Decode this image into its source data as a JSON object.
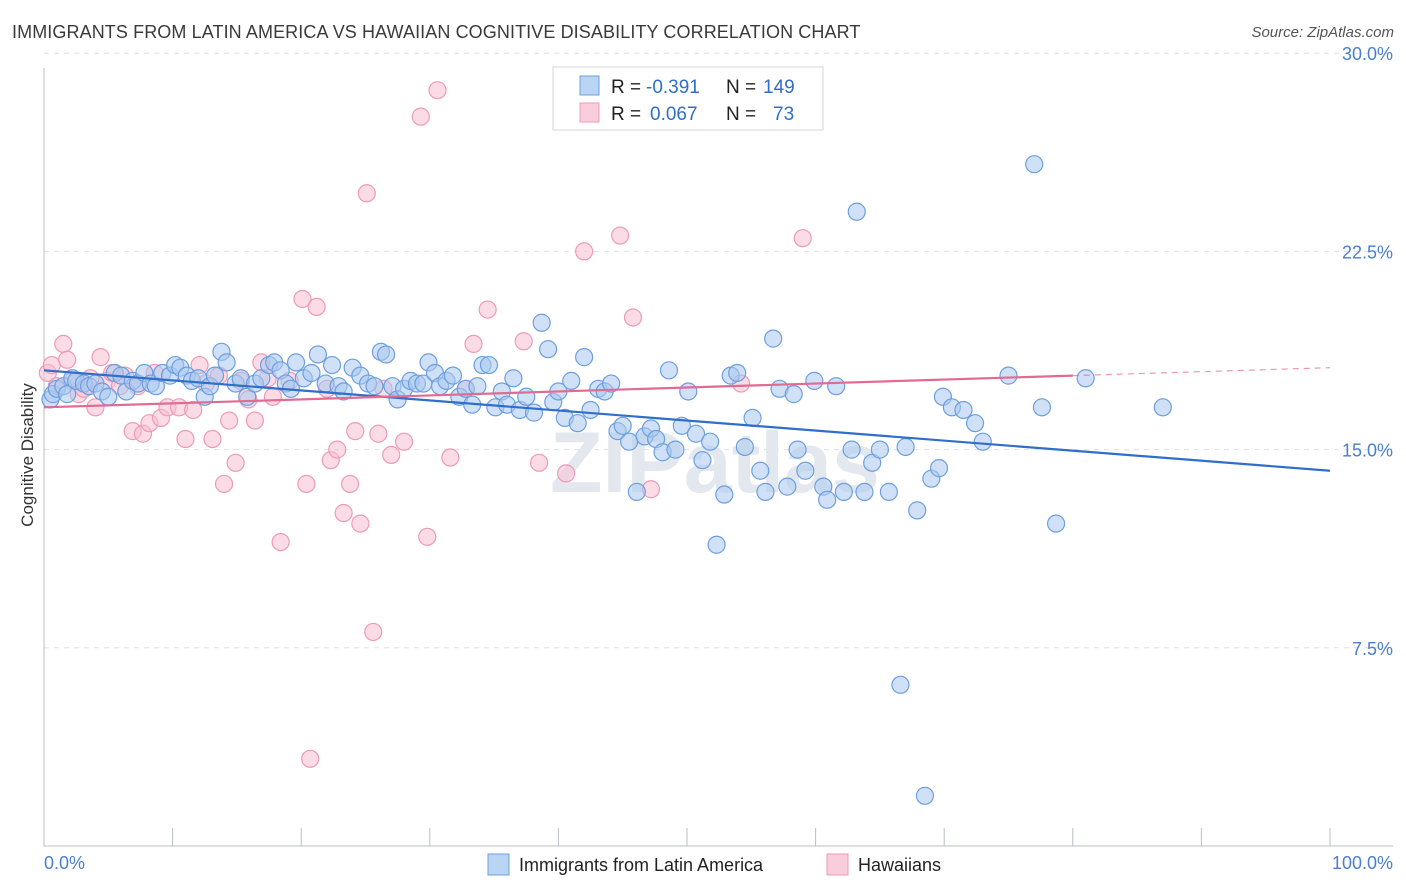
{
  "header": {
    "title": "IMMIGRANTS FROM LATIN AMERICA VS HAWAIIAN COGNITIVE DISABILITY CORRELATION CHART",
    "source": "Source: ZipAtlas.com"
  },
  "watermark": "ZIPatlas",
  "legend_box": {
    "r_label": "R =",
    "n_label": "N =",
    "rows": [
      {
        "r": "-0.391",
        "n": "149",
        "color": "#7aaee8"
      },
      {
        "r": "0.067",
        "n": "73",
        "color": "#f0a0bb"
      }
    ]
  },
  "colors": {
    "blue_fill": "#a9c9f0",
    "blue_stroke": "#6d9fe0",
    "blue_line": "#2f6ec9",
    "pink_fill": "#f7c0d2",
    "pink_stroke": "#ee9ab6",
    "pink_line": "#e06b93",
    "tick_text": "#4a7fcf",
    "grid": "#dde0e6"
  },
  "chart_data": {
    "type": "scatter",
    "title": "IMMIGRANTS FROM LATIN AMERICA VS HAWAIIAN COGNITIVE DISABILITY CORRELATION CHART",
    "xlabel": "",
    "ylabel": "Cognitive Disability",
    "xlim": [
      0,
      100
    ],
    "ylim": [
      0,
      30.5
    ],
    "x_tick_labels": [
      "0.0%",
      "100.0%"
    ],
    "y_ticks": [
      7.5,
      15.0,
      22.5,
      30.0
    ],
    "y_tick_labels": [
      "7.5%",
      "15.0%",
      "22.5%",
      "30.0%"
    ],
    "grid": "horizontal dashed",
    "legend_position": "bottom-center",
    "series": [
      {
        "name": "Immigrants from Latin America",
        "r": -0.391,
        "n": 149,
        "trend": {
          "x": [
            0,
            100
          ],
          "y": [
            18.0,
            14.2
          ]
        },
        "points": [
          [
            0.5,
            16.9
          ],
          [
            0.7,
            17.1
          ],
          [
            1.0,
            17.3
          ],
          [
            1.5,
            17.4
          ],
          [
            1.8,
            17.1
          ],
          [
            2.2,
            17.7
          ],
          [
            2.5,
            17.6
          ],
          [
            3.1,
            17.5
          ],
          [
            3.5,
            17.4
          ],
          [
            4.0,
            17.5
          ],
          [
            4.5,
            17.2
          ],
          [
            5.0,
            17.0
          ],
          [
            5.5,
            17.9
          ],
          [
            6.0,
            17.8
          ],
          [
            6.4,
            17.2
          ],
          [
            6.9,
            17.6
          ],
          [
            7.3,
            17.5
          ],
          [
            7.8,
            17.9
          ],
          [
            8.3,
            17.5
          ],
          [
            8.7,
            17.4
          ],
          [
            9.2,
            17.9
          ],
          [
            9.8,
            17.8
          ],
          [
            10.2,
            18.2
          ],
          [
            10.6,
            18.1
          ],
          [
            11.1,
            17.8
          ],
          [
            11.5,
            17.6
          ],
          [
            12.0,
            17.7
          ],
          [
            12.5,
            17.0
          ],
          [
            12.9,
            17.4
          ],
          [
            13.3,
            17.8
          ],
          [
            13.8,
            18.7
          ],
          [
            14.2,
            18.3
          ],
          [
            14.9,
            17.5
          ],
          [
            15.3,
            17.7
          ],
          [
            15.8,
            17.0
          ],
          [
            16.4,
            17.5
          ],
          [
            16.9,
            17.7
          ],
          [
            17.5,
            18.2
          ],
          [
            17.9,
            18.3
          ],
          [
            18.4,
            18.0
          ],
          [
            18.8,
            17.5
          ],
          [
            19.2,
            17.3
          ],
          [
            19.6,
            18.3
          ],
          [
            20.2,
            17.7
          ],
          [
            20.8,
            17.9
          ],
          [
            21.3,
            18.6
          ],
          [
            21.9,
            17.5
          ],
          [
            22.4,
            18.2
          ],
          [
            22.9,
            17.4
          ],
          [
            23.3,
            17.2
          ],
          [
            24.0,
            18.1
          ],
          [
            24.6,
            17.8
          ],
          [
            25.2,
            17.5
          ],
          [
            25.7,
            17.4
          ],
          [
            26.2,
            18.7
          ],
          [
            26.6,
            18.6
          ],
          [
            27.1,
            17.4
          ],
          [
            27.5,
            16.9
          ],
          [
            28.0,
            17.3
          ],
          [
            28.5,
            17.6
          ],
          [
            29.0,
            17.5
          ],
          [
            29.5,
            17.5
          ],
          [
            29.9,
            18.3
          ],
          [
            30.4,
            17.9
          ],
          [
            30.8,
            17.4
          ],
          [
            31.3,
            17.6
          ],
          [
            31.8,
            17.8
          ],
          [
            32.3,
            17.0
          ],
          [
            32.8,
            17.3
          ],
          [
            33.3,
            16.7
          ],
          [
            33.7,
            17.4
          ],
          [
            34.1,
            18.2
          ],
          [
            34.6,
            18.2
          ],
          [
            35.1,
            16.6
          ],
          [
            35.6,
            17.2
          ],
          [
            36.0,
            16.7
          ],
          [
            36.5,
            17.7
          ],
          [
            37.0,
            16.5
          ],
          [
            37.5,
            17.0
          ],
          [
            38.1,
            16.4
          ],
          [
            38.7,
            19.8
          ],
          [
            39.2,
            18.8
          ],
          [
            39.6,
            16.8
          ],
          [
            40.0,
            17.2
          ],
          [
            40.5,
            16.2
          ],
          [
            41.0,
            17.6
          ],
          [
            41.5,
            16.0
          ],
          [
            42.0,
            18.5
          ],
          [
            42.5,
            16.5
          ],
          [
            43.1,
            17.3
          ],
          [
            43.6,
            17.2
          ],
          [
            44.1,
            17.5
          ],
          [
            44.6,
            15.7
          ],
          [
            45.0,
            15.9
          ],
          [
            45.5,
            15.3
          ],
          [
            46.1,
            13.4
          ],
          [
            46.7,
            15.5
          ],
          [
            47.2,
            15.8
          ],
          [
            47.6,
            15.4
          ],
          [
            48.1,
            14.9
          ],
          [
            48.6,
            18.0
          ],
          [
            49.1,
            15.0
          ],
          [
            49.6,
            15.9
          ],
          [
            50.1,
            17.2
          ],
          [
            50.7,
            15.6
          ],
          [
            51.2,
            14.6
          ],
          [
            51.8,
            15.3
          ],
          [
            52.3,
            11.4
          ],
          [
            52.9,
            13.3
          ],
          [
            53.4,
            17.8
          ],
          [
            53.9,
            17.9
          ],
          [
            54.5,
            15.1
          ],
          [
            55.1,
            16.2
          ],
          [
            55.7,
            14.2
          ],
          [
            56.1,
            13.4
          ],
          [
            56.7,
            19.2
          ],
          [
            57.2,
            17.3
          ],
          [
            57.8,
            13.6
          ],
          [
            58.3,
            17.1
          ],
          [
            58.6,
            15.0
          ],
          [
            59.2,
            14.2
          ],
          [
            59.9,
            17.6
          ],
          [
            60.6,
            13.6
          ],
          [
            60.9,
            13.1
          ],
          [
            61.6,
            17.4
          ],
          [
            62.2,
            13.4
          ],
          [
            62.8,
            15.0
          ],
          [
            63.2,
            24.0
          ],
          [
            63.8,
            13.4
          ],
          [
            64.4,
            14.5
          ],
          [
            65.0,
            15.0
          ],
          [
            65.7,
            13.4
          ],
          [
            66.6,
            6.1
          ],
          [
            67.0,
            15.1
          ],
          [
            67.9,
            12.7
          ],
          [
            68.5,
            1.9
          ],
          [
            69.0,
            13.9
          ],
          [
            69.6,
            14.3
          ],
          [
            69.9,
            17.0
          ],
          [
            70.6,
            16.6
          ],
          [
            71.5,
            16.5
          ],
          [
            72.4,
            16.0
          ],
          [
            73.0,
            15.3
          ],
          [
            75.0,
            17.8
          ],
          [
            77.0,
            25.8
          ],
          [
            77.6,
            16.6
          ],
          [
            78.7,
            12.2
          ],
          [
            81.0,
            17.7
          ],
          [
            87.0,
            16.6
          ]
        ]
      },
      {
        "name": "Hawaiians",
        "r": 0.067,
        "n": 73,
        "trend": {
          "x": [
            0,
            80
          ],
          "y": [
            16.6,
            17.8
          ],
          "dashed_extension": {
            "x": [
              80,
              100
            ],
            "y": [
              17.8,
              18.1
            ]
          }
        },
        "points": [
          [
            0.3,
            17.9
          ],
          [
            0.6,
            18.2
          ],
          [
            1.0,
            17.4
          ],
          [
            1.5,
            19.0
          ],
          [
            1.8,
            18.4
          ],
          [
            2.2,
            17.6
          ],
          [
            2.7,
            17.1
          ],
          [
            3.1,
            17.3
          ],
          [
            3.6,
            17.7
          ],
          [
            4.0,
            16.6
          ],
          [
            4.4,
            18.5
          ],
          [
            4.9,
            17.6
          ],
          [
            5.3,
            17.9
          ],
          [
            5.9,
            17.4
          ],
          [
            6.3,
            17.8
          ],
          [
            6.9,
            15.7
          ],
          [
            7.3,
            17.4
          ],
          [
            7.7,
            15.6
          ],
          [
            8.2,
            16.0
          ],
          [
            8.6,
            17.9
          ],
          [
            9.1,
            16.2
          ],
          [
            9.6,
            16.6
          ],
          [
            10.5,
            16.6
          ],
          [
            11.0,
            15.4
          ],
          [
            11.6,
            16.5
          ],
          [
            12.1,
            18.2
          ],
          [
            12.6,
            17.5
          ],
          [
            13.1,
            15.4
          ],
          [
            13.6,
            17.8
          ],
          [
            14.0,
            13.7
          ],
          [
            14.4,
            16.1
          ],
          [
            14.9,
            14.5
          ],
          [
            15.3,
            17.6
          ],
          [
            15.9,
            16.9
          ],
          [
            16.4,
            16.1
          ],
          [
            16.9,
            18.3
          ],
          [
            17.4,
            17.7
          ],
          [
            17.8,
            17.0
          ],
          [
            18.4,
            11.5
          ],
          [
            19.1,
            17.6
          ],
          [
            20.1,
            20.7
          ],
          [
            20.4,
            13.7
          ],
          [
            20.7,
            3.3
          ],
          [
            21.2,
            20.4
          ],
          [
            22.0,
            17.3
          ],
          [
            22.3,
            14.6
          ],
          [
            22.8,
            15.0
          ],
          [
            23.3,
            12.6
          ],
          [
            23.8,
            13.7
          ],
          [
            24.2,
            15.7
          ],
          [
            24.6,
            12.2
          ],
          [
            25.1,
            24.7
          ],
          [
            25.6,
            8.1
          ],
          [
            26.0,
            15.6
          ],
          [
            26.4,
            17.3
          ],
          [
            27.0,
            14.8
          ],
          [
            28.0,
            15.3
          ],
          [
            29.3,
            27.6
          ],
          [
            29.8,
            11.7
          ],
          [
            30.6,
            28.6
          ],
          [
            31.6,
            14.7
          ],
          [
            32.8,
            17.3
          ],
          [
            33.4,
            19.0
          ],
          [
            34.5,
            20.3
          ],
          [
            37.3,
            19.1
          ],
          [
            38.5,
            14.5
          ],
          [
            40.6,
            14.1
          ],
          [
            42.0,
            22.5
          ],
          [
            44.8,
            23.1
          ],
          [
            45.8,
            20.0
          ],
          [
            47.2,
            13.5
          ],
          [
            54.2,
            17.5
          ],
          [
            59.0,
            23.0
          ]
        ]
      }
    ]
  }
}
